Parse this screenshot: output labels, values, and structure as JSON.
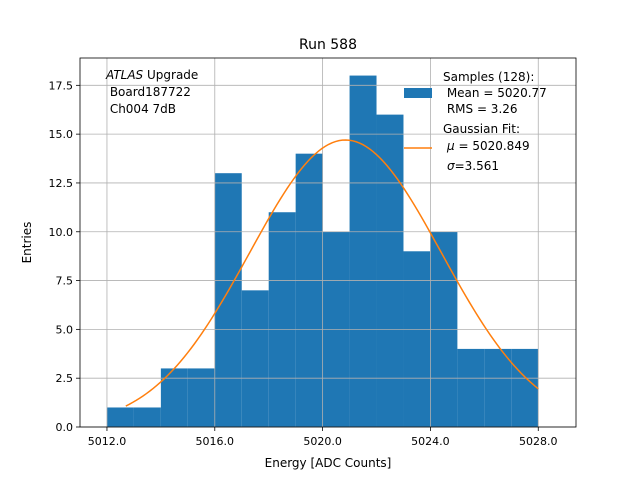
{
  "chart_data": {
    "type": "bar",
    "title": "Run 588",
    "xlabel": "Energy [ADC Counts]",
    "ylabel": "Entries",
    "xlim": [
      5011,
      5029.4
    ],
    "ylim": [
      0,
      18.9
    ],
    "grid": true,
    "legend_position": "top-right",
    "x_ticks": [
      {
        "value": 5012,
        "label": "5012.0"
      },
      {
        "value": 5016,
        "label": "5016.0"
      },
      {
        "value": 5020,
        "label": "5020.0"
      },
      {
        "value": 5024,
        "label": "5024.0"
      },
      {
        "value": 5028,
        "label": "5028.0"
      }
    ],
    "y_ticks": [
      {
        "value": 0,
        "label": "0.0"
      },
      {
        "value": 2.5,
        "label": "2.5"
      },
      {
        "value": 5,
        "label": "5.0"
      },
      {
        "value": 7.5,
        "label": "7.5"
      },
      {
        "value": 10,
        "label": "10.0"
      },
      {
        "value": 12.5,
        "label": "12.5"
      },
      {
        "value": 15,
        "label": "15.0"
      },
      {
        "value": 17.5,
        "label": "17.5"
      }
    ],
    "bin_edges": [
      5012,
      5013,
      5014,
      5015,
      5016,
      5017,
      5018,
      5019,
      5020,
      5021,
      5022,
      5023,
      5024,
      5025,
      5026,
      5027,
      5028
    ],
    "counts": [
      1,
      1,
      3,
      3,
      13,
      7,
      11,
      14,
      10,
      18,
      16,
      9,
      10,
      4,
      4,
      4
    ],
    "fit": {
      "mu": 5020.849,
      "sigma": 3.561,
      "amplitude": 14.7,
      "x_range": [
        5012.7,
        5028
      ]
    },
    "annotation_lines": [
      {
        "text": "ATLAS",
        "italic": true,
        "rest": " Upgrade"
      },
      {
        "text": " Board187722"
      },
      {
        "text": " Ch004 7dB"
      }
    ],
    "legend": {
      "samples": {
        "line1": "Samples (128):",
        "line2": " Mean = 5020.77",
        "line3": " RMS = 3.26"
      },
      "fit": {
        "line1": "Gaussian Fit:",
        "line2_sym": "μ",
        "line2_rest": " = 5020.849",
        "line3_sym": "σ",
        "line3_rest": "=3.561"
      }
    },
    "colors": {
      "bars": "#1f77b4",
      "fit": "#ff7f0e",
      "grid": "#b0b0b0"
    }
  }
}
